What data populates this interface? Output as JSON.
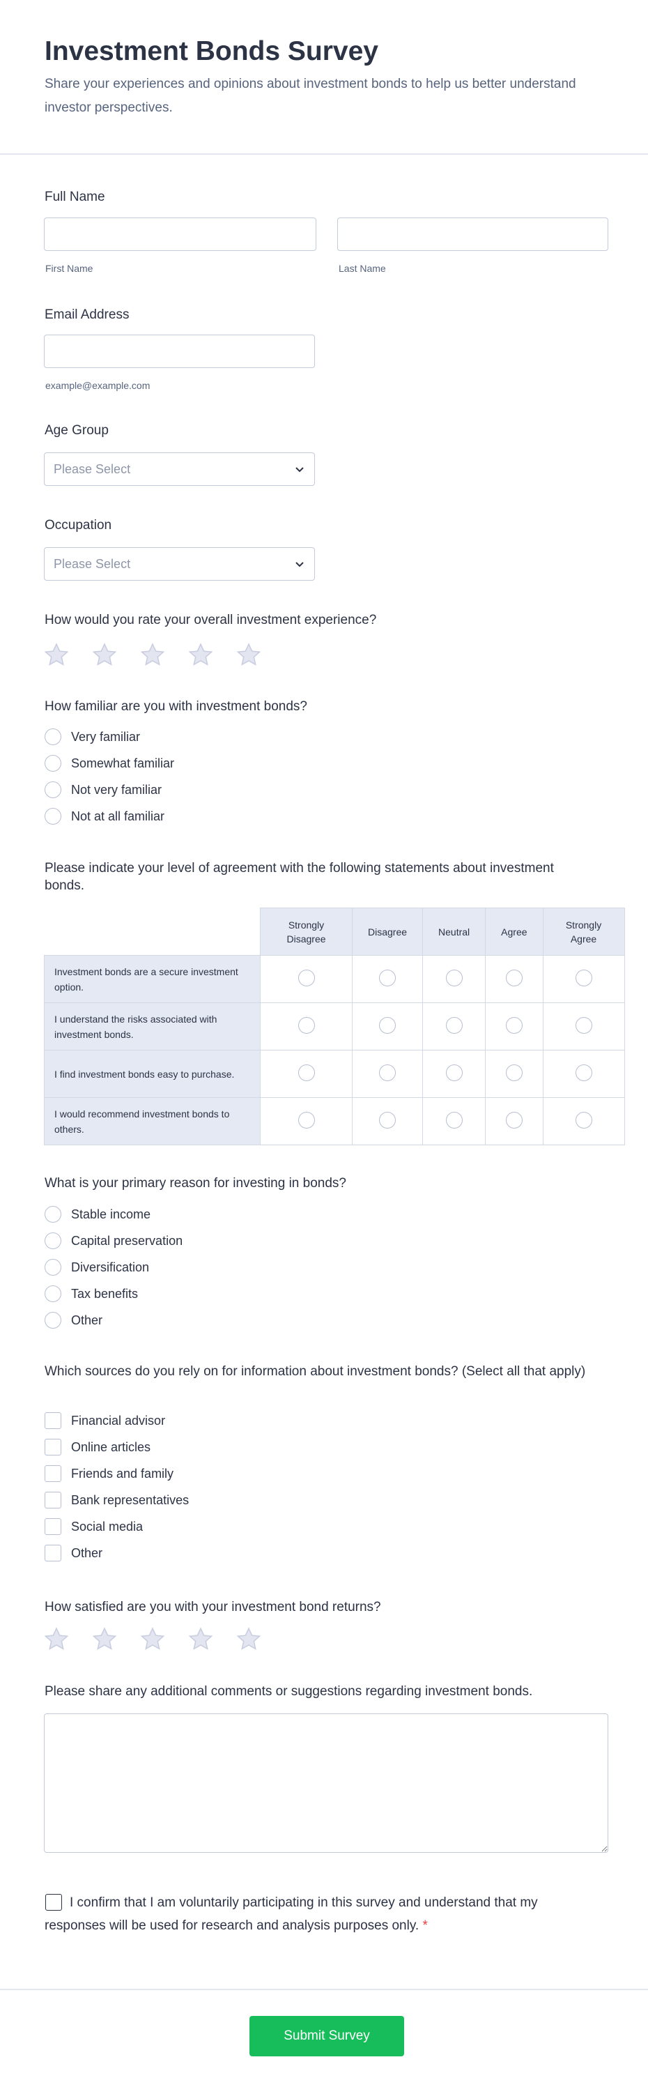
{
  "header": {
    "title": "Investment Bonds Survey",
    "subtitle": "Share your experiences and opinions about investment bonds to help us better understand investor perspectives."
  },
  "full_name": {
    "label": "Full Name",
    "first_sublabel": "First Name",
    "last_sublabel": "Last Name",
    "first_value": "",
    "last_value": ""
  },
  "email": {
    "label": "Email Address",
    "hint": "example@example.com",
    "value": ""
  },
  "age_group": {
    "label": "Age Group",
    "selected": "Please Select"
  },
  "occupation": {
    "label": "Occupation",
    "selected": "Please Select"
  },
  "experience_rating": {
    "question": "How would you rate your overall investment experience?",
    "max": 5,
    "value": 0
  },
  "familiarity": {
    "question": "How familiar are you with investment bonds?",
    "options": [
      "Very familiar",
      "Somewhat familiar",
      "Not very familiar",
      "Not at all familiar"
    ]
  },
  "agreement": {
    "question": "Please indicate your level of agreement with the following statements about investment bonds.",
    "columns": [
      "Strongly Disagree",
      "Disagree",
      "Neutral",
      "Agree",
      "Strongly Agree"
    ],
    "rows": [
      "Investment bonds are a secure investment option.",
      "I understand the risks associated with investment bonds.",
      "I find investment bonds easy to purchase.",
      "I would recommend investment bonds to others."
    ]
  },
  "reason": {
    "question": "What is your primary reason for investing in bonds?",
    "options": [
      "Stable income",
      "Capital preservation",
      "Diversification",
      "Tax benefits",
      "Other"
    ]
  },
  "sources": {
    "question": "Which sources do you rely on for information about investment bonds? (Select all that apply)",
    "options": [
      "Financial advisor",
      "Online articles",
      "Friends and family",
      "Bank representatives",
      "Social media",
      "Other"
    ]
  },
  "satisfaction_rating": {
    "question": "How satisfied are you with your investment bond returns?",
    "max": 5,
    "value": 0
  },
  "comments": {
    "question": "Please share any additional comments or suggestions regarding investment bonds.",
    "value": ""
  },
  "consent": {
    "text": "I confirm that I am voluntarily participating in this survey and understand that my responses will be used for research and analysis purposes only.",
    "required_mark": "*"
  },
  "submit": {
    "label": "Submit Survey"
  },
  "colors": {
    "accent": "#18bd5b",
    "required": "#f23a3c",
    "matrix_bg": "#e5e9f4",
    "star": "#e3e5f0"
  }
}
